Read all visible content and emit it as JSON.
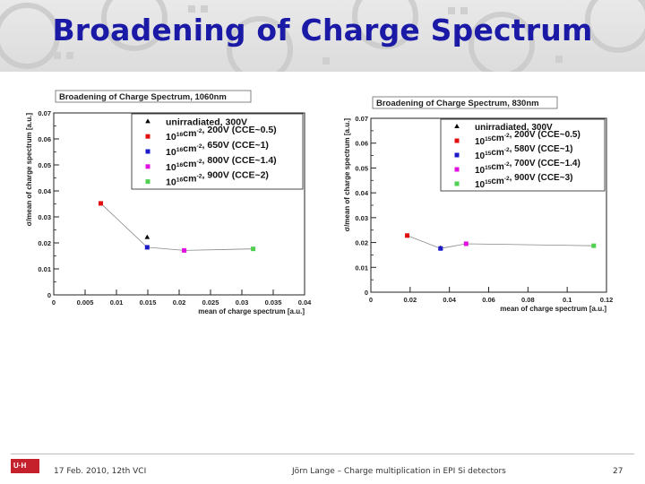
{
  "slide": {
    "title": "Broadening of Charge Spectrum",
    "footer_left": "17 Feb. 2010,  12th VCI",
    "footer_center": "Jörn Lange – Charge multiplication in EPI Si detectors",
    "page_number": "27",
    "logo_text": "U·H"
  },
  "chart_data": [
    {
      "type": "scatter",
      "title": "Broadening of Charge Spectrum, 1060nm",
      "xlabel": "mean of charge spectrum [a.u.]",
      "ylabel": "σ/mean of charge spectrum [a.u.]",
      "xlim": [
        0,
        0.04
      ],
      "ylim": [
        0,
        0.07
      ],
      "xticks": [
        0,
        0.005,
        0.01,
        0.015,
        0.02,
        0.025,
        0.03,
        0.035,
        0.04
      ],
      "xtick_labels": [
        "0",
        "0.005",
        "0.01",
        "0.015",
        "0.02",
        "0.025",
        "0.03",
        "0.035",
        "0.04"
      ],
      "yticks": [
        0,
        0.01,
        0.02,
        0.03,
        0.04,
        0.05,
        0.06,
        0.07
      ],
      "ytick_labels": [
        "0",
        "0.01",
        "0.02",
        "0.03",
        "0.04",
        "0.05",
        "0.06",
        "0.07"
      ],
      "legend_placement": "top-right",
      "series": [
        {
          "name": "unirradiated, 300V",
          "label": {
            "pre": "unirradiated, 300V"
          },
          "color": "#000000",
          "marker": "triangle",
          "x": [
            0.0149
          ],
          "y": [
            0.0222
          ]
        },
        {
          "name": "10^16 cm^-2, 200V (CCE~0.5)",
          "label": {
            "pre": "10",
            "sup1": "16",
            "mid": "cm",
            "sup2": "-2",
            "post": ", 200V (CCE~0.5)"
          },
          "color": "#e01010",
          "marker": "square",
          "x": [
            0.0075
          ],
          "y": [
            0.0352
          ]
        },
        {
          "name": "10^16 cm^-2, 650V (CCE~1)",
          "label": {
            "pre": "10",
            "sup1": "16",
            "mid": "cm",
            "sup2": "-2",
            "post": ", 650V (CCE~1)"
          },
          "color": "#1a1ac8",
          "marker": "square",
          "x": [
            0.0149
          ],
          "y": [
            0.0183
          ]
        },
        {
          "name": "10^16 cm^-2, 800V (CCE~1.4)",
          "label": {
            "pre": "10",
            "sup1": "16",
            "mid": "cm",
            "sup2": "-2",
            "post": ", 800V (CCE~1.4)"
          },
          "color": "#e010e0",
          "marker": "square",
          "x": [
            0.0208
          ],
          "y": [
            0.0171
          ]
        },
        {
          "name": "10^16 cm^-2, 900V (CCE~2)",
          "label": {
            "pre": "10",
            "sup1": "16",
            "mid": "cm",
            "sup2": "-2",
            "post": ", 900V (CCE~2)"
          },
          "color": "#50d050",
          "marker": "square",
          "x": [
            0.0318
          ],
          "y": [
            0.0177
          ]
        }
      ],
      "connecting_line": {
        "x": [
          0.0075,
          0.0149,
          0.0208,
          0.0318
        ],
        "y": [
          0.0352,
          0.0183,
          0.0171,
          0.0177
        ]
      }
    },
    {
      "type": "scatter",
      "title": "Broadening of Charge Spectrum, 830nm",
      "xlabel": "mean of charge spectrum [a.u.]",
      "ylabel": "σ/mean of charge spectrum [a.u.]",
      "xlim": [
        0,
        0.12
      ],
      "ylim": [
        0,
        0.07
      ],
      "xticks": [
        0,
        0.02,
        0.04,
        0.06,
        0.08,
        0.1,
        0.12
      ],
      "xtick_labels": [
        "0",
        "0.02",
        "0.04",
        "0.06",
        "0.08",
        "0.1",
        "0.12"
      ],
      "yticks": [
        0,
        0.01,
        0.02,
        0.03,
        0.04,
        0.05,
        0.06,
        0.07
      ],
      "ytick_labels": [
        "0",
        "0.01",
        "0.02",
        "0.03",
        "0.04",
        "0.05",
        "0.06",
        "0.07"
      ],
      "legend_placement": "top-right",
      "series": [
        {
          "name": "unirradiated, 300V",
          "label": {
            "pre": "unirradiated, 300V"
          },
          "color": "#000000",
          "marker": "triangle",
          "x": [
            0.0355
          ],
          "y": [
            0.0178
          ]
        },
        {
          "name": "10^15 cm^-2, 200V (CCE~0.5)",
          "label": {
            "pre": "10",
            "sup1": "15",
            "mid": "cm",
            "sup2": "-2",
            "post": ", 200V (CCE~0.5)"
          },
          "color": "#e01010",
          "marker": "square",
          "x": [
            0.0185
          ],
          "y": [
            0.0228
          ]
        },
        {
          "name": "10^15 cm^-2, 580V (CCE~1)",
          "label": {
            "pre": "10",
            "sup1": "15",
            "mid": "cm",
            "sup2": "-2",
            "post": ", 580V (CCE~1)"
          },
          "color": "#1a1ac8",
          "marker": "square",
          "x": [
            0.0355
          ],
          "y": [
            0.0176
          ]
        },
        {
          "name": "10^15 cm^-2, 700V (CCE~1.4)",
          "label": {
            "pre": "10",
            "sup1": "15",
            "mid": "cm",
            "sup2": "-2",
            "post": ", 700V (CCE~1.4)"
          },
          "color": "#e010e0",
          "marker": "square",
          "x": [
            0.0485
          ],
          "y": [
            0.0195
          ]
        },
        {
          "name": "10^15 cm^-2, 900V (CCE~3)",
          "label": {
            "pre": "10",
            "sup1": "15",
            "mid": "cm",
            "sup2": "-2",
            "post": ", 900V (CCE~3)"
          },
          "color": "#50d050",
          "marker": "square",
          "x": [
            0.1135
          ],
          "y": [
            0.0187
          ]
        }
      ],
      "connecting_line": {
        "x": [
          0.0185,
          0.0355,
          0.0485,
          0.1135
        ],
        "y": [
          0.0228,
          0.0176,
          0.0195,
          0.0187
        ]
      }
    }
  ]
}
